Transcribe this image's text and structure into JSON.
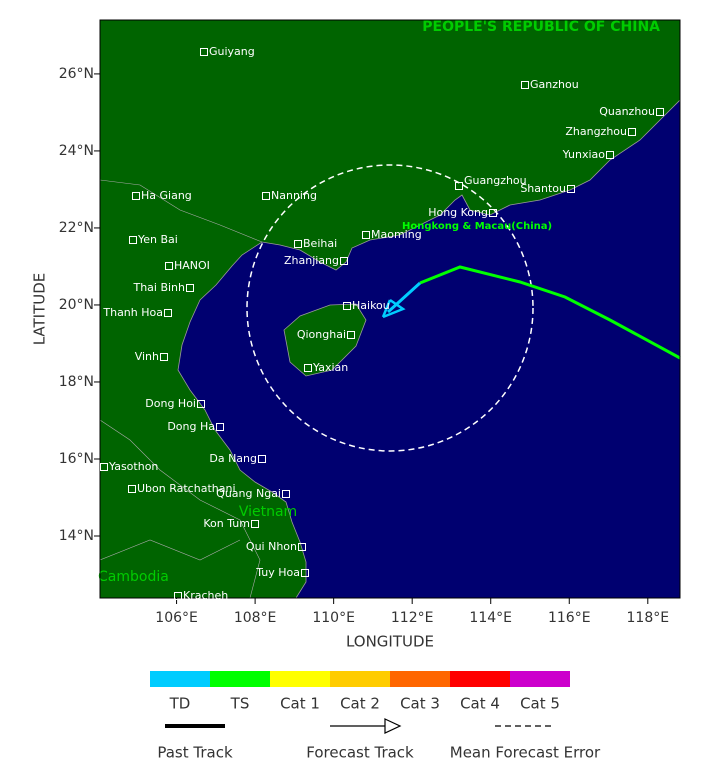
{
  "map": {
    "title": "PEOPLE'S REPUBLIC OF CHINA",
    "x_axis_label": "LONGITUDE",
    "y_axis_label": "LATITUDE",
    "xlim": [
      104.05,
      118.82
    ],
    "ylim": [
      12.39,
      27.4
    ],
    "xticks": [
      {
        "value": 106,
        "label": "106°E"
      },
      {
        "value": 108,
        "label": "108°E"
      },
      {
        "value": 110,
        "label": "110°E"
      },
      {
        "value": 112,
        "label": "112°E"
      },
      {
        "value": 114,
        "label": "114°E"
      },
      {
        "value": 116,
        "label": "116°E"
      },
      {
        "value": 118,
        "label": "118°E"
      }
    ],
    "yticks": [
      {
        "value": 14,
        "label": "14°N"
      },
      {
        "value": 16,
        "label": "16°N"
      },
      {
        "value": 18,
        "label": "18°N"
      },
      {
        "value": 20,
        "label": "20°N"
      },
      {
        "value": 22,
        "label": "22°N"
      },
      {
        "value": 24,
        "label": "24°N"
      },
      {
        "value": 26,
        "label": "26°N"
      }
    ],
    "countries": [
      "Vietnam",
      "Cambodia"
    ],
    "region_label": "Hongkong & Macau(China)",
    "cities": [
      "Guiyang",
      "Ganzhou",
      "Quanzhou",
      "Zhangzhou",
      "Yunxiao",
      "Shantou",
      "Guangzhou",
      "Hong Kong",
      "Nanning",
      "Ha Giang",
      "Yen Bai",
      "Beihai",
      "Maoming",
      "HANOI",
      "Zhanjiang",
      "Thai Binh",
      "Haikou",
      "Thanh Hoa",
      "Qionghai",
      "Vinh",
      "Yaxian",
      "Dong Hoi",
      "Dong Ha",
      "Da Nang",
      "Yasothon",
      "Ubon Ratchathani",
      "Quang Ngai",
      "Kon Tum",
      "Qui Nhon",
      "Tuy Hoa",
      "Kracheh"
    ]
  },
  "legend": {
    "categories": [
      "TD",
      "TS",
      "Cat 1",
      "Cat 2",
      "Cat 3",
      "Cat 4",
      "Cat 5"
    ],
    "colors": [
      "#00ccff",
      "#00ff00",
      "#ffff00",
      "#ffcc00",
      "#ff6600",
      "#ff0000",
      "#cc00cc"
    ],
    "tracks": [
      "Past Track",
      "Forecast Track",
      "Mean Forecast Error"
    ]
  }
}
